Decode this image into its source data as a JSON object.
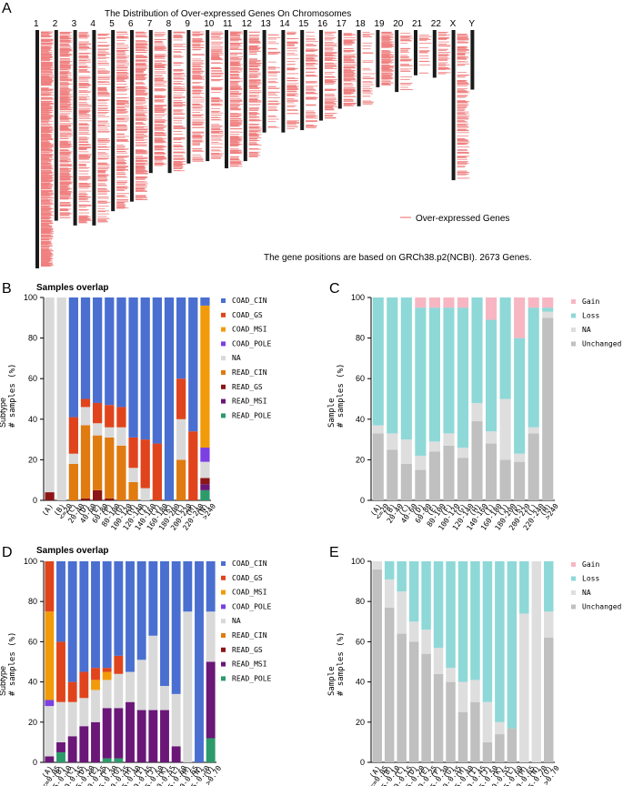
{
  "panel_labels": {
    "a": "A",
    "b": "B",
    "c": "C",
    "d": "D",
    "e": "E"
  },
  "colors": {
    "COAD_CIN": "#4a6fd0",
    "COAD_GS": "#e0441c",
    "COAD_MSI": "#f29b0a",
    "COAD_POLE": "#7b3fe4",
    "NA": "#d9d9d9",
    "READ_CIN": "#e07b10",
    "READ_GS": "#8c1515",
    "READ_MSI": "#6a1778",
    "READ_POLE": "#2c9a6a",
    "Gain": "#f7b6c2",
    "Loss": "#8fd8d8",
    "Unchanged": "#c0c0c0",
    "NA_cnv": "#dedede",
    "gene": "#f08080"
  },
  "chart_data": [
    {
      "id": "A",
      "type": "chromosome_map",
      "title": "The Distribution of Over-expressed Genes On Chromosomes",
      "chromosomes": [
        "1",
        "2",
        "3",
        "4",
        "5",
        "6",
        "7",
        "8",
        "9",
        "10",
        "11",
        "12",
        "13",
        "14",
        "15",
        "16",
        "17",
        "18",
        "19",
        "20",
        "21",
        "22",
        "X",
        "Y"
      ],
      "relative_lengths": [
        1.0,
        0.8,
        0.82,
        0.82,
        0.76,
        0.72,
        0.6,
        0.6,
        0.56,
        0.55,
        0.58,
        0.55,
        0.43,
        0.43,
        0.42,
        0.38,
        0.33,
        0.32,
        0.24,
        0.26,
        0.19,
        0.2,
        0.63,
        0.25
      ],
      "gene_density": [
        26,
        18,
        10,
        8,
        10,
        14,
        12,
        9,
        10,
        9,
        14,
        12,
        5,
        7,
        8,
        10,
        14,
        4,
        20,
        6,
        4,
        8,
        10,
        0
      ],
      "legend": "Over-expressed Genes",
      "note": "The gene positions are based on GRCh38.p2(NCBI). 2673 Genes."
    },
    {
      "id": "B",
      "type": "bar",
      "stacked": true,
      "title": "Samples overlap",
      "ylabel": "# samples (%)",
      "ylabel_side": "Subtype",
      "ylim": [
        0,
        100
      ],
      "yticks": [
        0,
        20,
        40,
        60,
        80,
        100
      ],
      "categories": [
        "(A)",
        "(B) <=20",
        "(C) 20-40",
        "(D) 40-60",
        "(E) 60-80",
        "(F) 80-100",
        "(G) 100-120",
        "(H) 120-140",
        "(I) 140-160",
        "(J) 160-180",
        "(K) 180-200",
        "(L) 200-220",
        "(M) 220-240",
        "(N) >240"
      ],
      "tick_labels": [
        "(A)",
        "(B)\n<=20",
        "(C)\n20-40",
        "(D)\n40-60",
        "(E)\n60-80",
        "(F)\n80-100",
        "(G)\n100-120",
        "(H)\n120-140",
        "(I)\n140-160",
        "(J)\n160-180",
        "(K)\n180-200",
        "(L)\n200-220",
        "(M)\n220-240",
        "(N)\n>240"
      ],
      "legend": [
        "COAD_CIN",
        "COAD_GS",
        "COAD_MSI",
        "COAD_POLE",
        "NA",
        "READ_CIN",
        "READ_GS",
        "READ_MSI",
        "READ_POLE"
      ],
      "series": [
        {
          "name": "READ_POLE",
          "values": [
            0,
            0,
            0,
            0,
            0,
            0,
            0,
            0,
            0,
            0,
            0,
            0,
            0,
            5
          ]
        },
        {
          "name": "READ_MSI",
          "values": [
            0,
            0,
            0,
            0,
            0,
            0,
            0,
            0,
            0,
            0,
            0,
            0,
            0,
            3
          ]
        },
        {
          "name": "READ_GS",
          "values": [
            4,
            0,
            0,
            1,
            5,
            1,
            0,
            0,
            0,
            0,
            0,
            0,
            0,
            3
          ]
        },
        {
          "name": "READ_CIN",
          "values": [
            0,
            0,
            18,
            36,
            27,
            30,
            27,
            9,
            0,
            0,
            0,
            20,
            0,
            0
          ]
        },
        {
          "name": "NA",
          "values": [
            96,
            100,
            5,
            9,
            6,
            5,
            9,
            7,
            6,
            0,
            0,
            20,
            0,
            8
          ]
        },
        {
          "name": "COAD_POLE",
          "values": [
            0,
            0,
            0,
            0,
            0,
            0,
            0,
            0,
            0,
            0,
            0,
            0,
            0,
            7
          ]
        },
        {
          "name": "COAD_MSI",
          "values": [
            0,
            0,
            0,
            0,
            0,
            0,
            0,
            0,
            0,
            0,
            0,
            0,
            0,
            70
          ]
        },
        {
          "name": "COAD_GS",
          "values": [
            0,
            0,
            18,
            4,
            10,
            11,
            10,
            15,
            24,
            28,
            0,
            20,
            34,
            0
          ]
        },
        {
          "name": "COAD_CIN",
          "values": [
            0,
            0,
            59,
            50,
            52,
            53,
            54,
            69,
            70,
            72,
            100,
            40,
            66,
            4
          ]
        }
      ]
    },
    {
      "id": "C",
      "type": "bar",
      "stacked": true,
      "ylabel": "# samples (%)",
      "ylabel_side": "Sample",
      "ylim": [
        0,
        100
      ],
      "yticks": [
        0,
        20,
        40,
        60,
        80,
        100
      ],
      "categories": [
        "(A) <=20",
        "(B) 20-40",
        "(C) 40-60",
        "(D) 60-80",
        "(E) 80-100",
        "(F) 100-120",
        "(G) 120-140",
        "(H) 140-160",
        "(I) 160-180",
        "(J) 180-200",
        "(K) 200-220",
        "(L) 220-240",
        "(M) >240"
      ],
      "tick_labels": [
        "(A)\n<=20",
        "(B)\n20-40",
        "(C)\n40-60",
        "(D)\n60-80",
        "(E)\n80-100",
        "(F)\n100-120",
        "(G)\n120-140",
        "(H)\n140-160",
        "(I)\n160-180",
        "(J)\n180-200",
        "(K)\n200-220",
        "(L)\n220-240",
        "(M)\n>240"
      ],
      "legend": [
        "Gain",
        "Loss",
        "NA",
        "Unchanged"
      ],
      "series": [
        {
          "name": "Unchanged",
          "values": [
            33,
            25,
            18,
            15,
            24,
            27,
            21,
            39,
            28,
            20,
            19,
            33,
            90
          ]
        },
        {
          "name": "NA",
          "values": [
            4,
            8,
            12,
            7,
            5,
            6,
            5,
            9,
            6,
            30,
            4,
            3,
            3
          ]
        },
        {
          "name": "Loss",
          "values": [
            63,
            67,
            70,
            73,
            66,
            62,
            69,
            52,
            55,
            50,
            57,
            59,
            2
          ]
        },
        {
          "name": "Gain",
          "values": [
            0,
            0,
            0,
            5,
            5,
            5,
            5,
            0,
            11,
            0,
            20,
            5,
            5
          ]
        }
      ]
    },
    {
      "id": "D",
      "type": "bar",
      "stacked": true,
      "title": "Samples overlap",
      "ylabel": "# samples (%)",
      "ylabel_side": "Subtype",
      "ylim": [
        0,
        100
      ],
      "yticks": [
        0,
        20,
        40,
        60,
        80,
        100
      ],
      "categories": [
        "(A) <=0.05",
        "(B) 0.05-0.10",
        "(C) 0.10-0.15",
        "(D) 0.15-0.20",
        "(E) 0.20-0.25",
        "(F) 0.25-0.30",
        "(G) 0.30-0.35",
        "(H) 0.35-0.40",
        "(I) 0.40-0.45",
        "(J) 0.45-0.50",
        "(K) 0.50-0.55",
        "(L) 0.55-0.60",
        "(M) 0.60-0.65",
        "(N) 0.65-0.70",
        "(O) >0.70"
      ],
      "tick_labels": [
        "(A)\n<=0.05",
        "(B)\n0.05-0.10",
        "(C)\n0.10-0.15",
        "(D)\n0.15-0.20",
        "(E)\n0.20-0.25",
        "(F)\n0.25-0.30",
        "(G)\n0.30-0.35",
        "(H)\n0.35-0.40",
        "(I)\n0.40-0.45",
        "(J)\n0.45-0.50",
        "(K)\n0.50-0.55",
        "(L)\n0.55-0.60",
        "(M)\n0.60-0.65",
        "(N)\n0.65-0.70",
        "(O)\n>0.70"
      ],
      "legend": [
        "COAD_CIN",
        "COAD_GS",
        "COAD_MSI",
        "COAD_POLE",
        "NA",
        "READ_CIN",
        "READ_GS",
        "READ_MSI",
        "READ_POLE"
      ],
      "series": [
        {
          "name": "READ_POLE",
          "values": [
            0,
            5,
            0,
            0,
            0,
            2,
            2,
            0,
            0,
            0,
            0,
            0,
            0,
            0,
            12
          ]
        },
        {
          "name": "READ_MSI",
          "values": [
            3,
            5,
            13,
            18,
            20,
            25,
            25,
            30,
            26,
            26,
            26,
            8,
            0,
            0,
            38
          ]
        },
        {
          "name": "READ_GS",
          "values": [
            0,
            0,
            0,
            0,
            0,
            0,
            0,
            0,
            0,
            0,
            0,
            0,
            0,
            0,
            0
          ]
        },
        {
          "name": "READ_CIN",
          "values": [
            0,
            0,
            0,
            0,
            0,
            0,
            0,
            0,
            0,
            0,
            0,
            0,
            0,
            0,
            0
          ]
        },
        {
          "name": "NA",
          "values": [
            25,
            20,
            17,
            14,
            16,
            14,
            17,
            15,
            25,
            37,
            12,
            26,
            75,
            0,
            25
          ]
        },
        {
          "name": "COAD_POLE",
          "values": [
            3,
            0,
            0,
            0,
            0,
            0,
            0,
            0,
            0,
            0,
            0,
            0,
            0,
            0,
            0
          ]
        },
        {
          "name": "COAD_MSI",
          "values": [
            44,
            0,
            0,
            0,
            5,
            4,
            0,
            0,
            0,
            0,
            0,
            0,
            0,
            0,
            0
          ]
        },
        {
          "name": "COAD_GS",
          "values": [
            25,
            30,
            10,
            13,
            6,
            2,
            9,
            0,
            0,
            0,
            0,
            0,
            0,
            0,
            0
          ]
        },
        {
          "name": "COAD_CIN",
          "values": [
            0,
            40,
            60,
            55,
            53,
            53,
            47,
            55,
            49,
            37,
            62,
            66,
            25,
            100,
            25
          ]
        }
      ]
    },
    {
      "id": "E",
      "type": "bar",
      "stacked": true,
      "ylabel": "# samples (%)",
      "ylabel_side": "Sample",
      "ylim": [
        0,
        100
      ],
      "yticks": [
        0,
        20,
        40,
        60,
        80,
        100
      ],
      "categories": [
        "(A) <=0.05",
        "(B) 0.05-0.10",
        "(C) 0.10-0.15",
        "(D) 0.15-0.20",
        "(E) 0.20-0.25",
        "(F) 0.25-0.30",
        "(G) 0.30-0.35",
        "(H) 0.35-0.40",
        "(I) 0.40-0.45",
        "(J) 0.45-0.50",
        "(K) 0.50-0.55",
        "(L) 0.55-0.60",
        "(M) 0.60-0.65",
        "(N) 0.65-0.70",
        "(O) >0.70"
      ],
      "tick_labels": [
        "(A)\n<=0.05",
        "(B)\n0.05-0.10",
        "(C)\n0.10-0.15",
        "(D)\n0.15-0.20",
        "(E)\n0.20-0.25",
        "(F)\n0.25-0.30",
        "(G)\n0.30-0.35",
        "(H)\n0.35-0.40",
        "(I)\n0.40-0.45",
        "(J)\n0.45-0.50",
        "(K)\n0.50-0.55",
        "(L)\n0.55-0.60",
        "(M)\n0.60-0.65",
        "(N)\n0.65-0.70",
        "(O)\n>0.70"
      ],
      "legend": [
        "Gain",
        "Loss",
        "NA",
        "Unchanged"
      ],
      "series": [
        {
          "name": "Unchanged",
          "values": [
            96,
            77,
            64,
            60,
            54,
            44,
            40,
            25,
            30,
            10,
            14,
            17,
            0,
            0,
            62
          ]
        },
        {
          "name": "NA",
          "values": [
            4,
            14,
            21,
            10,
            12,
            13,
            7,
            15,
            11,
            20,
            6,
            0,
            74,
            100,
            13
          ]
        },
        {
          "name": "Loss",
          "values": [
            0,
            9,
            15,
            30,
            34,
            43,
            53,
            60,
            59,
            70,
            80,
            83,
            26,
            0,
            25
          ]
        },
        {
          "name": "Gain",
          "values": [
            0,
            0,
            0,
            0,
            0,
            0,
            0,
            0,
            0,
            0,
            0,
            0,
            0,
            0,
            0
          ]
        }
      ]
    }
  ]
}
